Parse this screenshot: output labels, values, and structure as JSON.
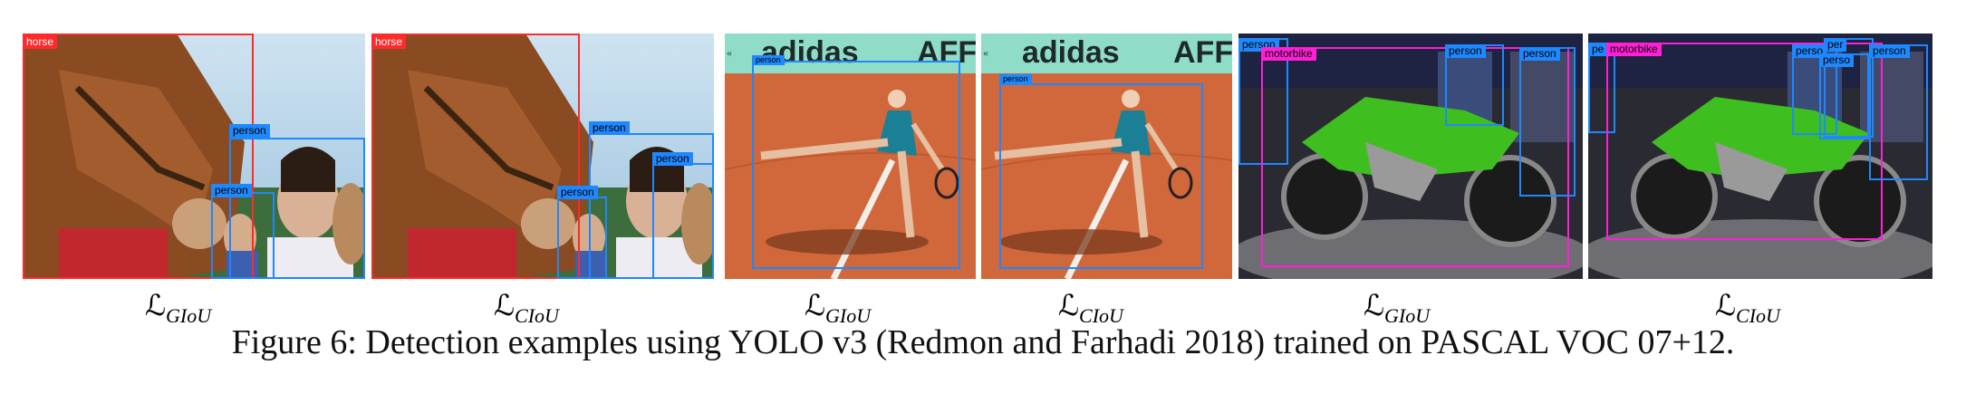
{
  "caption": "Figure 6: Detection examples using YOLO v3 (Redmon and Farhadi 2018) trained on PASCAL VOC 07+12.",
  "colors": {
    "horse": "#ff2a2a",
    "person": "#1e88ff",
    "motorbike": "#ff1fd6"
  },
  "panels": [
    {
      "loss_symbol": "ℒ",
      "loss_sub": "GIoU",
      "labels": {
        "horse": "horse",
        "person1": "person",
        "person2": "person"
      }
    },
    {
      "loss_symbol": "ℒ",
      "loss_sub": "CIoU",
      "labels": {
        "horse": "horse",
        "person1": "person",
        "person2": "person",
        "person3": "person"
      }
    },
    {
      "loss_symbol": "ℒ",
      "loss_sub": "GIoU",
      "banner_text": "adidas",
      "banner_text2": "AFF",
      "labels": {
        "person1": "person"
      }
    },
    {
      "loss_symbol": "ℒ",
      "loss_sub": "CIoU",
      "banner_text": "adidas",
      "banner_text2": "AFF",
      "labels": {
        "person1": "person"
      }
    },
    {
      "loss_symbol": "ℒ",
      "loss_sub": "GIoU",
      "labels": {
        "person1": "person",
        "motorbike": "motorbike",
        "person2": "person",
        "person3": "person"
      }
    },
    {
      "loss_symbol": "ℒ",
      "loss_sub": "CIoU",
      "labels": {
        "person1": "pe",
        "motorbike": "motorbike",
        "person2": "perso",
        "person3": "per",
        "person4": "perso",
        "person5": "person"
      }
    }
  ]
}
